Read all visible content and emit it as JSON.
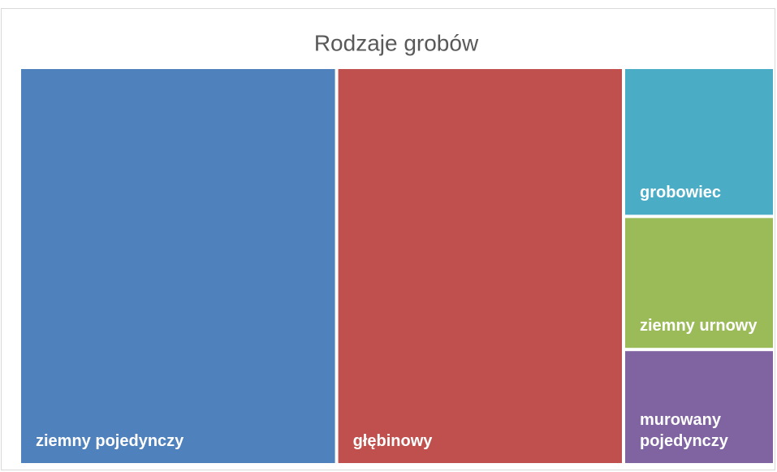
{
  "chart_data": {
    "type": "treemap",
    "title": "Rodzaje grobów",
    "categories": [
      "ziemny pojedynczy",
      "głębinowy",
      "grobowiec",
      "ziemny urnowy",
      "murowany pojedynczy"
    ],
    "values": [
      42,
      38,
      7.5,
      6.7,
      5.8
    ],
    "colors": [
      "#4f81bd",
      "#c0504d",
      "#4bacc6",
      "#9bbb59",
      "#8064a2"
    ]
  }
}
